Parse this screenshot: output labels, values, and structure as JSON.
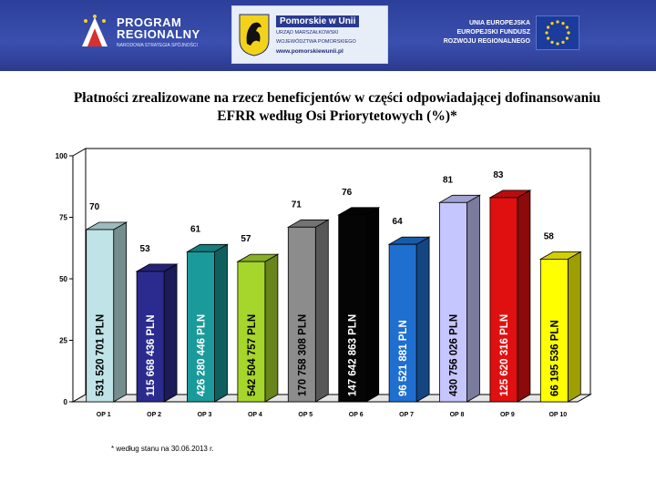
{
  "banner": {
    "program_line1": "PROGRAM",
    "program_line2": "REGIONALNY",
    "program_sub": "NARODOWA STRATEGIA SPÓJNOŚCI",
    "pomorskie_title": "Pomorskie w Unii",
    "pomorskie_sub1": "URZĄD MARSZAŁKOWSKI",
    "pomorskie_sub2": "WOJEWÓDZTWA POMORSKIEGO",
    "pomorskie_url": "www.pomorskiewunii.pl",
    "eu_line1": "UNIA EUROPEJSKA",
    "eu_line2": "EUROPEJSKI FUNDUSZ",
    "eu_line3": "ROZWOJU REGIONALNEGO",
    "colors": {
      "banner": "#2c3f9a"
    }
  },
  "chart_data": {
    "type": "bar",
    "title": "Płatności zrealizowane na rzecz beneficjentów w części odpowiadającej dofinansowaniu EFRR według Osi Priorytetowych (%)*",
    "categories": [
      "OP 1",
      "OP 2",
      "OP 3",
      "OP 4",
      "OP 5",
      "OP 6",
      "OP 7",
      "OP 8",
      "OP 9",
      "OP 10"
    ],
    "values": [
      70,
      53,
      61,
      57,
      71,
      76,
      64,
      81,
      83,
      58
    ],
    "bar_labels": [
      "531 520 701 PLN",
      "115 668 436 PLN",
      "426 280 446 PLN",
      "542 504 757 PLN",
      "170 758 308 PLN",
      "147 642 863 PLN",
      "96 521 881 PLN",
      "430 756 026 PLN",
      "125 620 316 PLN",
      "66 195 536 PLN"
    ],
    "bar_colors": [
      "#bfe3e6",
      "#2b2b8f",
      "#1a9a9a",
      "#a6d62b",
      "#8c8c8c",
      "#050505",
      "#1f6fd0",
      "#c6c6ff",
      "#e01010",
      "#ffff00"
    ],
    "yticks": [
      0,
      25,
      50,
      75,
      100
    ],
    "ylim": [
      0,
      100
    ],
    "xlabel": "",
    "ylabel": "",
    "grid": false,
    "footnote": "* według stanu na 30.06.2013 r."
  }
}
